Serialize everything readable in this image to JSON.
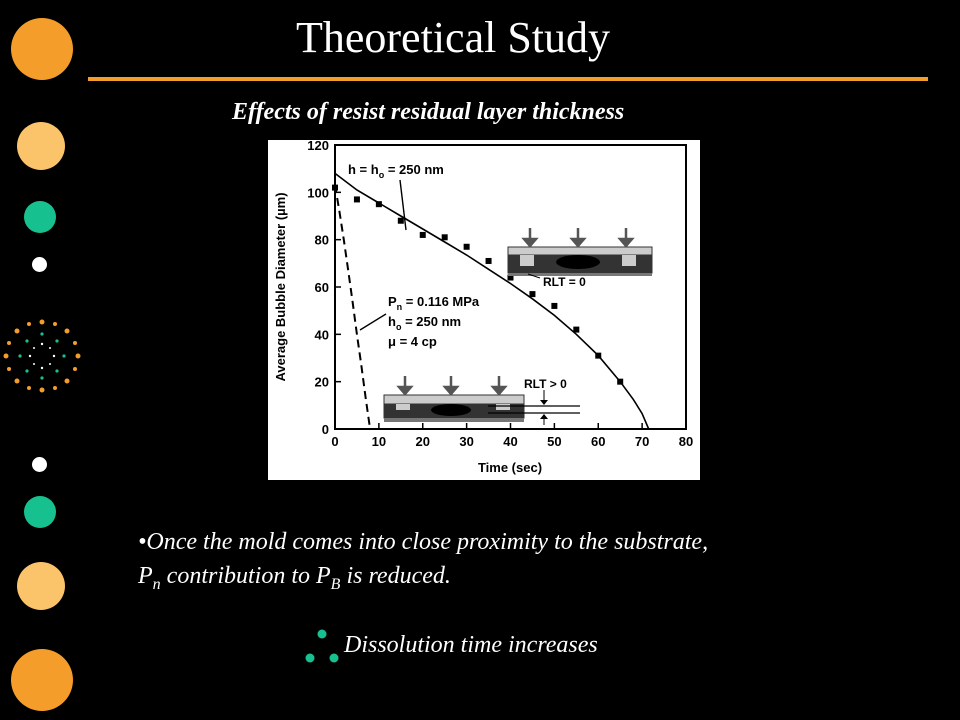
{
  "slide": {
    "title": "Theoretical Study",
    "subtitle": "Effects of resist residual layer thickness",
    "bullet": {
      "prefix": "•Once the mold comes into close proximity to the substrate,",
      "p1": "P",
      "p1_sub": "n",
      "middle": " contribution to P",
      "p2_sub": "B",
      "suffix": " is reduced."
    },
    "conclusion": "Dissolution time increases"
  },
  "colors": {
    "accent_orange": "#f59d2a",
    "light_orange": "#fcc46a",
    "teal": "#17c18f",
    "white": "#ffffff",
    "background": "#000000"
  },
  "chart_data": {
    "type": "scatter",
    "xlabel": "Time (sec)",
    "ylabel": "Average Bubble Diameter (µm)",
    "xlim": [
      0,
      80
    ],
    "ylim": [
      0,
      120
    ],
    "xticks": [
      0,
      10,
      20,
      30,
      40,
      50,
      60,
      70,
      80
    ],
    "yticks": [
      0,
      20,
      40,
      60,
      80,
      100,
      120
    ],
    "grid": false,
    "series": [
      {
        "name": "",
        "kind": "points",
        "x": [
          0,
          5,
          10,
          15,
          20,
          25,
          30,
          35,
          40,
          45,
          50,
          55,
          60,
          65
        ],
        "y": [
          102,
          97,
          95,
          88,
          82,
          81,
          77,
          71,
          64,
          57,
          52,
          42,
          31,
          20
        ]
      },
      {
        "name": "",
        "kind": "solid-line",
        "x": [
          0,
          5,
          10,
          15,
          20,
          25,
          30,
          35,
          40,
          45,
          50,
          55,
          60,
          65,
          68,
          70,
          71.5
        ],
        "y": [
          108,
          101,
          95.5,
          90,
          84.5,
          79,
          73.5,
          67.5,
          61.5,
          55,
          48,
          40,
          31,
          20,
          12.5,
          6.5,
          0
        ]
      },
      {
        "name": "",
        "kind": "dashed-line",
        "x": [
          0,
          1,
          2,
          3,
          4,
          5,
          6,
          7,
          8
        ],
        "y": [
          103,
          92,
          80,
          67,
          54,
          40,
          27,
          13,
          0
        ]
      }
    ],
    "annotations": [
      {
        "parts": [
          "h = h",
          "o",
          " = 250 nm"
        ]
      },
      {
        "parts": [
          "P",
          "n",
          " = 0.116 MPa"
        ]
      },
      {
        "parts": [
          "h",
          "o",
          " = 250 nm"
        ]
      },
      {
        "parts": [
          "μ = 4 cp"
        ]
      },
      {
        "parts": [
          "RLT = 0"
        ]
      },
      {
        "parts": [
          "RLT > 0"
        ]
      }
    ]
  }
}
